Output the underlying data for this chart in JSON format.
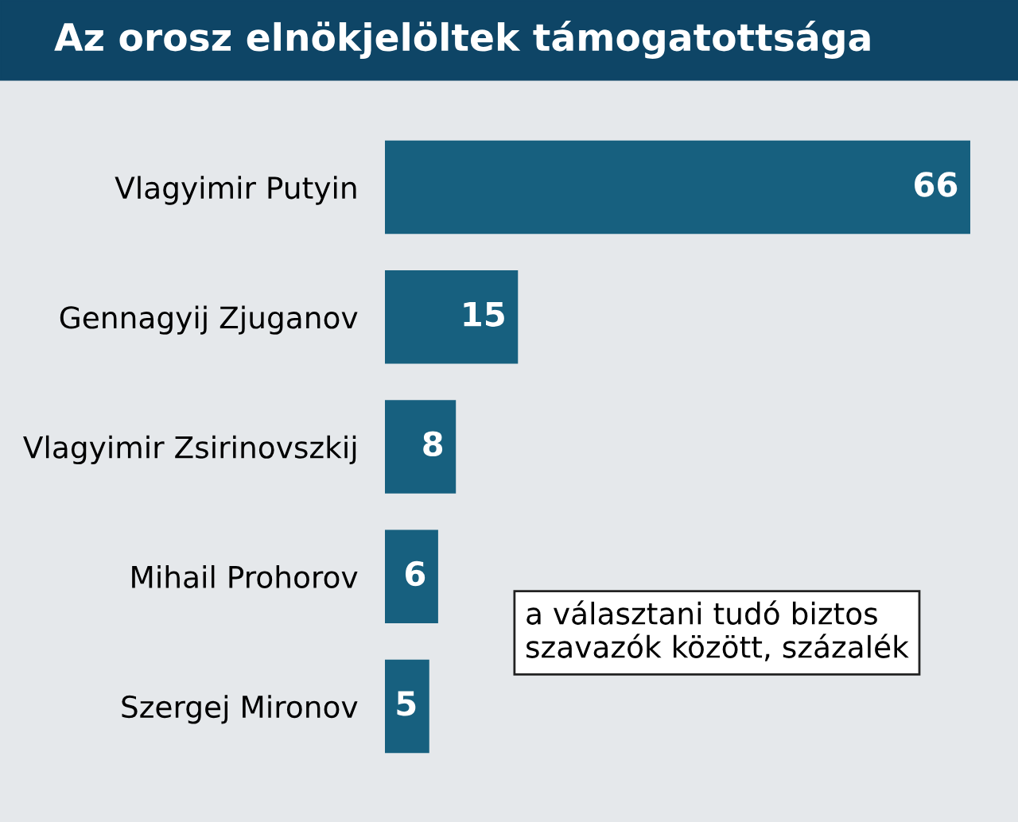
{
  "chart_data": {
    "type": "bar",
    "orientation": "horizontal",
    "title": "Az orosz elnökjelöltek támogatottsága",
    "categories": [
      "Vlagyimir Putyin",
      "Gennagyij Zjuganov",
      "Vlagyimir Zsirinovszkij",
      "Mihail Prohorov",
      "Szergej Mironov"
    ],
    "values": [
      66,
      15,
      8,
      6,
      5
    ],
    "color": "#17607f",
    "data_labels": true,
    "grid": false,
    "legend": false,
    "annotations": [
      "a választani tudó biztos\nszavazók között, százalék"
    ]
  }
}
